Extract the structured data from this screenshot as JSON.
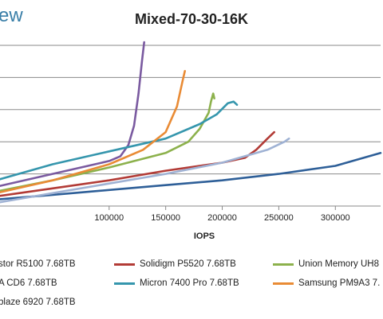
{
  "header": {
    "brand_text": "ew",
    "title": "Mixed-70-30-16K"
  },
  "chart_data": {
    "type": "line",
    "title": "Mixed-70-30-16K",
    "xlabel": "IOPS",
    "ylabel": "",
    "xlim": [
      0,
      340000
    ],
    "ylim": [
      0,
      10
    ],
    "xticks": [
      100000,
      150000,
      200000,
      250000,
      300000
    ],
    "xtick_labels": [
      "100000",
      "150000",
      "200000",
      "250000",
      "300000"
    ],
    "grid": true,
    "legend_position": "bottom",
    "series": [
      {
        "name": "stor R5100 7.68TB",
        "color": "#2e5f98",
        "points": [
          [
            0,
            0.4
          ],
          [
            50000,
            0.7
          ],
          [
            100000,
            1.0
          ],
          [
            150000,
            1.3
          ],
          [
            200000,
            1.6
          ],
          [
            250000,
            2.0
          ],
          [
            300000,
            2.5
          ],
          [
            340000,
            3.3
          ]
        ]
      },
      {
        "name": "Solidigm P5520 7.68TB",
        "color": "#b23b36",
        "points": [
          [
            0,
            0.6
          ],
          [
            50000,
            1.1
          ],
          [
            100000,
            1.6
          ],
          [
            150000,
            2.2
          ],
          [
            200000,
            2.7
          ],
          [
            220000,
            3.0
          ],
          [
            230000,
            3.5
          ],
          [
            240000,
            4.2
          ],
          [
            246000,
            4.6
          ]
        ]
      },
      {
        "name": "Union Memory UH8",
        "color": "#8cb14c",
        "points": [
          [
            0,
            0.9
          ],
          [
            50000,
            1.6
          ],
          [
            100000,
            2.4
          ],
          [
            150000,
            3.3
          ],
          [
            170000,
            4.0
          ],
          [
            180000,
            4.8
          ],
          [
            188000,
            5.8
          ],
          [
            190000,
            6.5
          ],
          [
            192000,
            7.0
          ],
          [
            193000,
            6.7
          ]
        ]
      },
      {
        "name": "A CD6 7.68TB",
        "color": "#7a5aa0",
        "points": [
          [
            0,
            1.2
          ],
          [
            50000,
            2.0
          ],
          [
            100000,
            2.8
          ],
          [
            110000,
            3.1
          ],
          [
            117000,
            3.8
          ],
          [
            122000,
            5.0
          ],
          [
            126000,
            7.0
          ],
          [
            129000,
            9.0
          ],
          [
            131000,
            10.2
          ]
        ]
      },
      {
        "name": "Micron 7400 Pro 7.68TB",
        "color": "#3596ad",
        "points": [
          [
            0,
            1.6
          ],
          [
            50000,
            2.6
          ],
          [
            100000,
            3.4
          ],
          [
            150000,
            4.2
          ],
          [
            180000,
            5.1
          ],
          [
            195000,
            5.7
          ],
          [
            205000,
            6.4
          ],
          [
            210000,
            6.5
          ],
          [
            213000,
            6.3
          ]
        ]
      },
      {
        "name": "Samsung PM9A3 7.",
        "color": "#e98b35",
        "points": [
          [
            0,
            0.8
          ],
          [
            50000,
            1.6
          ],
          [
            100000,
            2.6
          ],
          [
            130000,
            3.5
          ],
          [
            150000,
            4.6
          ],
          [
            160000,
            6.2
          ],
          [
            165000,
            7.8
          ],
          [
            167000,
            8.4
          ]
        ]
      },
      {
        "name": "blaze 6920 7.68TB",
        "color": "#9fb2d4",
        "points": [
          [
            0,
            0.2
          ],
          [
            50000,
            0.8
          ],
          [
            100000,
            1.4
          ],
          [
            150000,
            2.0
          ],
          [
            200000,
            2.7
          ],
          [
            240000,
            3.5
          ],
          [
            255000,
            4.0
          ],
          [
            259000,
            4.2
          ]
        ]
      }
    ]
  }
}
